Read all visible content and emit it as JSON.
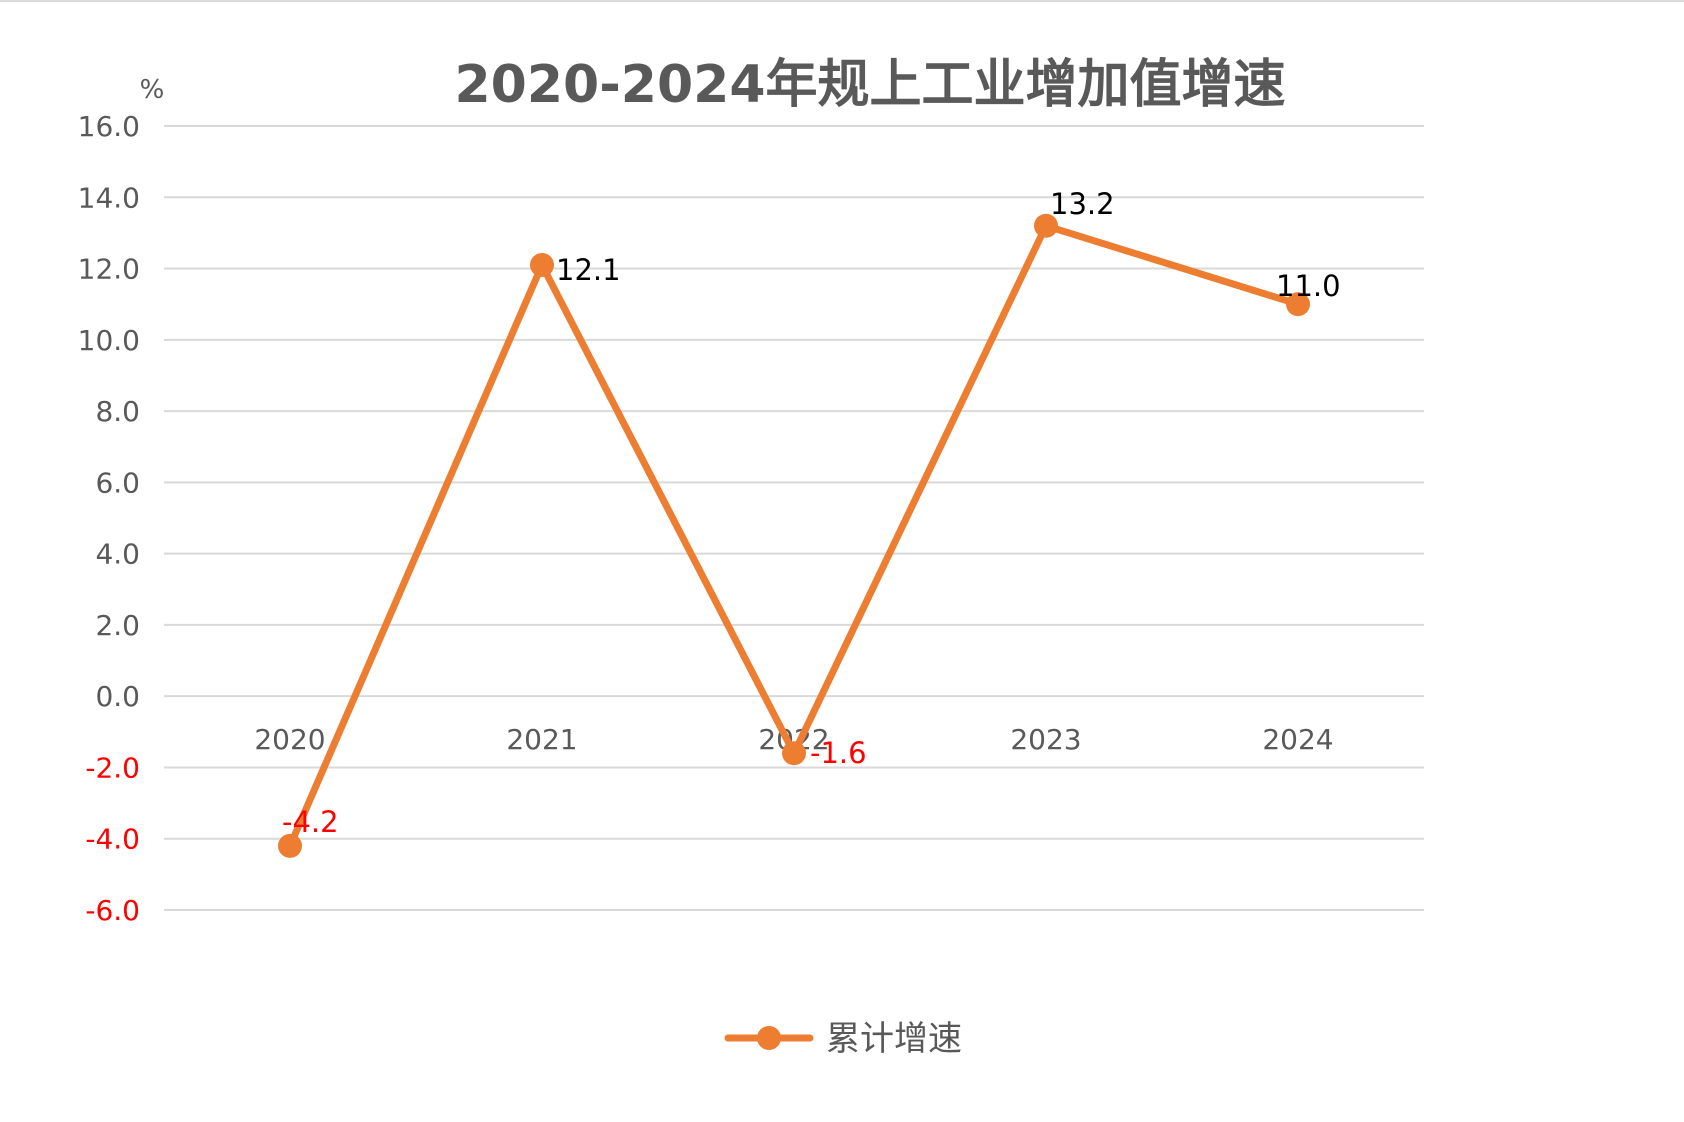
{
  "chart_data": {
    "type": "line",
    "title": "2020-2024年规上工业增加值增速",
    "ylabel": "%",
    "xlabel": "",
    "categories": [
      "2020",
      "2021",
      "2022",
      "2023",
      "2024"
    ],
    "series": [
      {
        "name": "累计增速",
        "values": [
          -4.2,
          12.1,
          -1.6,
          13.2,
          11.0
        ],
        "value_labels": [
          "-4.2",
          "12.1",
          "-1.6",
          "13.2",
          "11.0"
        ]
      }
    ],
    "yticks": [
      16.0,
      14.0,
      12.0,
      10.0,
      8.0,
      6.0,
      4.0,
      2.0,
      0.0,
      -2.0,
      -4.0,
      -6.0
    ],
    "ytick_labels": [
      "16.0",
      "14.0",
      "12.0",
      "10.0",
      "8.0",
      "6.0",
      "4.0",
      "2.0",
      "0.0",
      "-2.0",
      "-4.0",
      "-6.0"
    ],
    "ylim": [
      -6,
      16
    ],
    "grid": true,
    "legend_position": "bottom-center",
    "colors": {
      "line": "#ED7D31",
      "negative_text": "#FF0000",
      "text": "#595959",
      "title": "#595959",
      "label": "#000000",
      "grid": "#D9D9D9"
    }
  }
}
